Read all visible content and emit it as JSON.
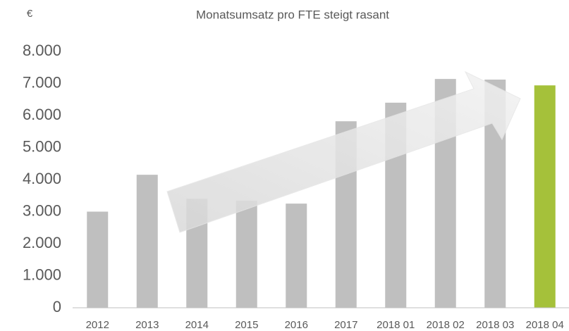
{
  "chart_data": {
    "type": "bar",
    "title": "Monatsumsatz pro FTE steigt rasant",
    "ylabel": "€",
    "categories": [
      "2012",
      "2013",
      "2014",
      "2015",
      "2016",
      "2017",
      "2018 01",
      "2018 02",
      "2018 03",
      "2018 04"
    ],
    "values": [
      3000,
      4150,
      3400,
      3340,
      3250,
      5820,
      6400,
      7140,
      7120,
      6940
    ],
    "colors": [
      "#bfbfbf",
      "#bfbfbf",
      "#bfbfbf",
      "#bfbfbf",
      "#bfbfbf",
      "#bfbfbf",
      "#bfbfbf",
      "#bfbfbf",
      "#bfbfbf",
      "#a5c13a"
    ],
    "ylim": [
      0,
      8000
    ],
    "yticks": [
      0,
      {
        "value": 1000,
        "label": "1.000"
      },
      {
        "value": 2000,
        "label": "2.000"
      },
      {
        "value": 3000,
        "label": "3.000"
      },
      {
        "value": 4000,
        "label": "4.000"
      },
      {
        "value": 5000,
        "label": "5.000"
      },
      {
        "value": 6000,
        "label": "6.000"
      },
      {
        "value": 7000,
        "label": "7.000"
      },
      {
        "value": 8000,
        "label": "8.000"
      }
    ],
    "grid": false
  }
}
